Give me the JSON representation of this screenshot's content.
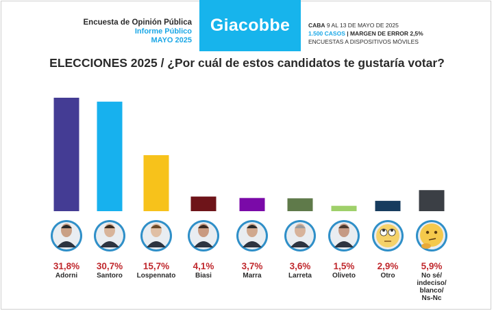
{
  "header": {
    "line1": "Encuesta de Opinión Pública",
    "line2": "Informe Público",
    "line3": "MAYO 2025",
    "brand": "Giacobbe",
    "caba_bold": "CABA",
    "caba_rest": " 9 AL 13 DE MAYO DE 2025",
    "casos": "1.500 CASOS",
    "margen": " | MARGEN DE ERROR 2,5%",
    "encuestas": "ENCUESTAS A DISPOSITIVOS MÓVILES"
  },
  "chart_data": {
    "type": "bar",
    "title": "ELECCIONES 2025 / ¿Por cuál de estos candidatos te gustaría votar?",
    "categories": [
      "Adorni",
      "Santoro",
      "Lospennato",
      "Biasi",
      "Marra",
      "Larreta",
      "Oliveto",
      "Otro",
      "No sé/ indeciso/ blanco/ Ns-Nc"
    ],
    "category_lines": [
      [
        "Adorni"
      ],
      [
        "Santoro"
      ],
      [
        "Lospennato"
      ],
      [
        "Biasi"
      ],
      [
        "Marra"
      ],
      [
        "Larreta"
      ],
      [
        "Oliveto"
      ],
      [
        "Otro"
      ],
      [
        "No sé/",
        "indeciso/",
        "blanco/",
        "Ns-Nc"
      ]
    ],
    "values": [
      31.8,
      30.7,
      15.7,
      4.1,
      3.7,
      3.6,
      1.5,
      2.9,
      5.9
    ],
    "labels": [
      "31,8%",
      "30,7%",
      "15,7%",
      "4,1%",
      "3,7%",
      "3,6%",
      "1,5%",
      "2,9%",
      "5,9%"
    ],
    "colors": [
      "#443c94",
      "#17b1ee",
      "#f7c21b",
      "#6e1419",
      "#7a0aa8",
      "#5f7a4a",
      "#9fd06a",
      "#173c5e",
      "#3b3f45"
    ],
    "icons": [
      "person-adorni-icon",
      "person-santoro-icon",
      "person-lospennato-icon",
      "person-biasi-icon",
      "person-marra-icon",
      "person-larreta-icon",
      "person-oliveto-icon",
      "rolling-eyes-emoji-icon",
      "thinking-face-emoji-icon"
    ],
    "ylim": [
      0,
      31.8
    ],
    "grid": false,
    "legend": "none"
  }
}
